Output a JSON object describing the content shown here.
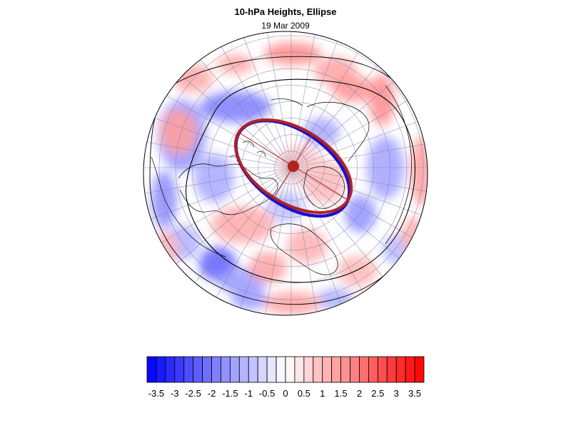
{
  "title": "10-hPa Heights, Ellipse",
  "subtitle": "19 Mar 2009",
  "colors": {
    "negative_max": "#0000ff",
    "neutral": "#ffffff",
    "positive_max": "#ff0000",
    "ellipse_observed": "#1a10c8",
    "ellipse_fit": "#b22222",
    "ellipse_center": "#b22222",
    "coastlines": "#000000",
    "graticule": "#7a7fa8"
  },
  "map": {
    "projection": "north-polar-stereographic",
    "features": [
      "coastlines",
      "graticule",
      "anomaly-field",
      "height-contours",
      "vortex-ellipse",
      "ellipse-center",
      "ellipse-axes"
    ]
  },
  "colorbar": {
    "min": -3.75,
    "max": 3.75,
    "step": 0.25,
    "tick_labels": [
      "-3.5",
      "-3",
      "-2.5",
      "-2",
      "-1.5",
      "-1",
      "-0.5",
      "0",
      "0.5",
      "1",
      "1.5",
      "2",
      "2.5",
      "3",
      "3.5"
    ]
  }
}
